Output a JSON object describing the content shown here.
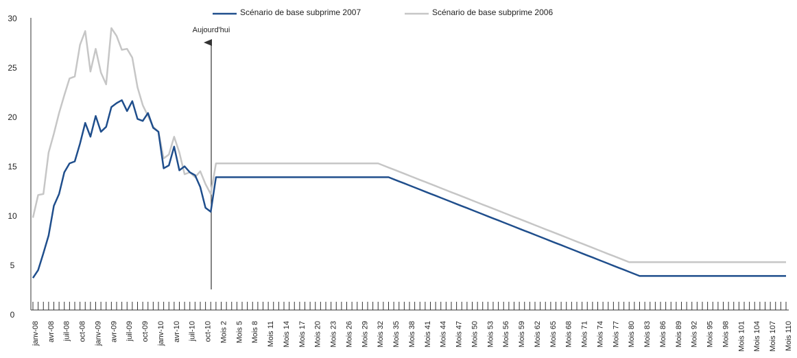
{
  "chart_data": {
    "type": "line",
    "annotation": "Aujourd'hui",
    "categories": [
      "janv-08",
      null,
      null,
      "avr-08",
      null,
      null,
      "juil-08",
      null,
      null,
      "oct-08",
      null,
      null,
      "janv-09",
      null,
      null,
      "avr-09",
      null,
      null,
      "juil-09",
      null,
      null,
      "oct-09",
      null,
      null,
      "janv-10",
      null,
      null,
      "avr-10",
      null,
      null,
      "juil-10",
      null,
      null,
      "oct-10",
      null,
      null,
      "Mois 2",
      null,
      null,
      "Mois 5",
      null,
      null,
      "Mois 8",
      null,
      null,
      "Mois 11",
      null,
      null,
      "Mois 14",
      null,
      null,
      "Mois 17",
      null,
      null,
      "Mois 20",
      null,
      null,
      "Mois 23",
      null,
      null,
      "Mois 26",
      null,
      null,
      "Mois 29",
      null,
      null,
      "Mois 32",
      null,
      null,
      "Mois 35",
      null,
      null,
      "Mois 38",
      null,
      null,
      "Mois 41",
      null,
      null,
      "Mois 44",
      null,
      null,
      "Mois 47",
      null,
      null,
      "Mois 50",
      null,
      null,
      "Mois 53",
      null,
      null,
      "Mois 56",
      null,
      null,
      "Mois 59",
      null,
      null,
      "Mois 62",
      null,
      null,
      "Mois 65",
      null,
      null,
      "Mois 68",
      null,
      null,
      "Mois 71",
      null,
      null,
      "Mois 74",
      null,
      null,
      "Mois 77",
      null,
      null,
      "Mois 80",
      null,
      null,
      "Mois 83",
      null,
      null,
      "Mois 86",
      null,
      null,
      "Mois 89",
      null,
      null,
      "Mois 92",
      null,
      null,
      "Mois 95",
      null,
      null,
      "Mois 98",
      null,
      null,
      "Mois 101",
      null,
      null,
      "Mois 104",
      null,
      null,
      "Mois 107",
      null,
      null,
      "Mois 110"
    ],
    "series": [
      {
        "name": "Scénario de base subprime 2006",
        "color": "#c6c6c6",
        "values": [
          9.9,
          12.2,
          12.3,
          16.5,
          18.4,
          20.5,
          22.3,
          24.0,
          24.2,
          27.4,
          28.8,
          24.7,
          27.0,
          24.6,
          23.4,
          29.1,
          28.3,
          26.9,
          27.0,
          26.1,
          23.1,
          21.3,
          20.2,
          19.1,
          18.6,
          15.9,
          16.3,
          18.1,
          16.5,
          14.3,
          14.5,
          14.0,
          14.6,
          13.3,
          12.3,
          15.4,
          15.4,
          15.4,
          15.4,
          15.4,
          15.4,
          15.4,
          15.4,
          15.4,
          15.4,
          15.4,
          15.4,
          15.4,
          15.4,
          15.4,
          15.4,
          15.4,
          15.4,
          15.4,
          15.4,
          15.4,
          15.4,
          15.4,
          15.4,
          15.4,
          15.4,
          15.4,
          15.4,
          15.4,
          15.4,
          15.4,
          15.4,
          15.19,
          14.98,
          14.78,
          14.57,
          14.36,
          14.15,
          13.94,
          13.73,
          13.53,
          13.32,
          13.11,
          12.9,
          12.69,
          12.48,
          12.28,
          12.07,
          11.86,
          11.65,
          11.44,
          11.23,
          11.03,
          10.82,
          10.61,
          10.4,
          10.19,
          9.98,
          9.78,
          9.57,
          9.36,
          9.15,
          8.94,
          8.73,
          8.53,
          8.32,
          8.11,
          7.9,
          7.69,
          7.48,
          7.28,
          7.07,
          6.86,
          6.65,
          6.44,
          6.23,
          6.03,
          5.82,
          5.61,
          5.4,
          5.4,
          5.4,
          5.4,
          5.4,
          5.4,
          5.4,
          5.4,
          5.4,
          5.4,
          5.4,
          5.4,
          5.4,
          5.4,
          5.4,
          5.4,
          5.4,
          5.4,
          5.4,
          5.4,
          5.4,
          5.4,
          5.4,
          5.4,
          5.4,
          5.4,
          5.4,
          5.4,
          5.4,
          5.4,
          5.4
        ]
      },
      {
        "name": "Scénario de base subprime 2007",
        "color": "#1f4e8c",
        "values": [
          3.8,
          4.6,
          6.3,
          8.1,
          11.1,
          12.3,
          14.5,
          15.4,
          15.6,
          17.4,
          19.5,
          18.1,
          20.2,
          18.6,
          19.1,
          21.1,
          21.5,
          21.8,
          20.7,
          21.7,
          19.9,
          19.7,
          20.5,
          19.0,
          18.6,
          14.9,
          15.2,
          17.1,
          14.7,
          15.1,
          14.5,
          14.2,
          13.0,
          10.9,
          10.5,
          14,
          14,
          14,
          14,
          14,
          14,
          14,
          14,
          14,
          14,
          14,
          14,
          14,
          14,
          14,
          14,
          14,
          14,
          14,
          14,
          14,
          14,
          14,
          14,
          14,
          14,
          14,
          14,
          14,
          14,
          14,
          14,
          14,
          14,
          13.79,
          13.58,
          13.38,
          13.17,
          12.96,
          12.75,
          12.54,
          12.33,
          12.13,
          11.92,
          11.71,
          11.5,
          11.29,
          11.08,
          10.88,
          10.67,
          10.46,
          10.25,
          10.04,
          9.83,
          9.63,
          9.42,
          9.21,
          9.0,
          8.79,
          8.58,
          8.38,
          8.17,
          7.96,
          7.75,
          7.54,
          7.33,
          7.13,
          6.92,
          6.71,
          6.5,
          6.29,
          6.08,
          5.88,
          5.67,
          5.46,
          5.25,
          5.04,
          4.83,
          4.63,
          4.42,
          4.21,
          4.0,
          4,
          4,
          4,
          4,
          4,
          4,
          4,
          4,
          4,
          4,
          4,
          4,
          4,
          4,
          4,
          4,
          4,
          4,
          4,
          4,
          4,
          4,
          4,
          4,
          4,
          4,
          4,
          4
        ]
      }
    ],
    "legend_order": [
      1,
      0
    ],
    "ylim": [
      0,
      30
    ],
    "yticks": [
      0,
      5,
      10,
      15,
      20,
      25,
      30
    ]
  }
}
